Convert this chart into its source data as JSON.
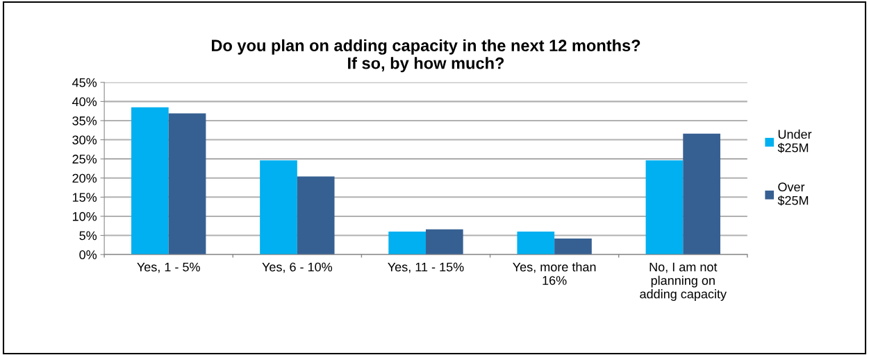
{
  "chart_data": {
    "type": "bar",
    "title": "Do you plan on adding capacity in the next 12 months?\nIf so, by how much?",
    "categories": [
      "Yes, 1 - 5%",
      "Yes, 6 - 10%",
      "Yes, 11 - 15%",
      "Yes, more than\n16%",
      "No, I am not\nplanning on\nadding capacity"
    ],
    "series": [
      {
        "name": "Under\n$25M",
        "color": "#00b0f0",
        "values": [
          38.5,
          24.6,
          6.0,
          6.0,
          24.6
        ]
      },
      {
        "name": "Over\n$25M",
        "color": "#376092",
        "values": [
          36.9,
          20.4,
          6.6,
          4.2,
          31.6
        ]
      }
    ],
    "ylim": [
      0,
      45
    ],
    "yticks": [
      {
        "value": 0,
        "label": "0%"
      },
      {
        "value": 5,
        "label": "5%"
      },
      {
        "value": 10,
        "label": "10%"
      },
      {
        "value": 15,
        "label": "15%"
      },
      {
        "value": 20,
        "label": "20%"
      },
      {
        "value": 25,
        "label": "25%"
      },
      {
        "value": 30,
        "label": "30%"
      },
      {
        "value": 35,
        "label": "35%"
      },
      {
        "value": 40,
        "label": "40%"
      },
      {
        "value": 45,
        "label": "45%"
      }
    ],
    "grid": "y",
    "legend": "right"
  }
}
